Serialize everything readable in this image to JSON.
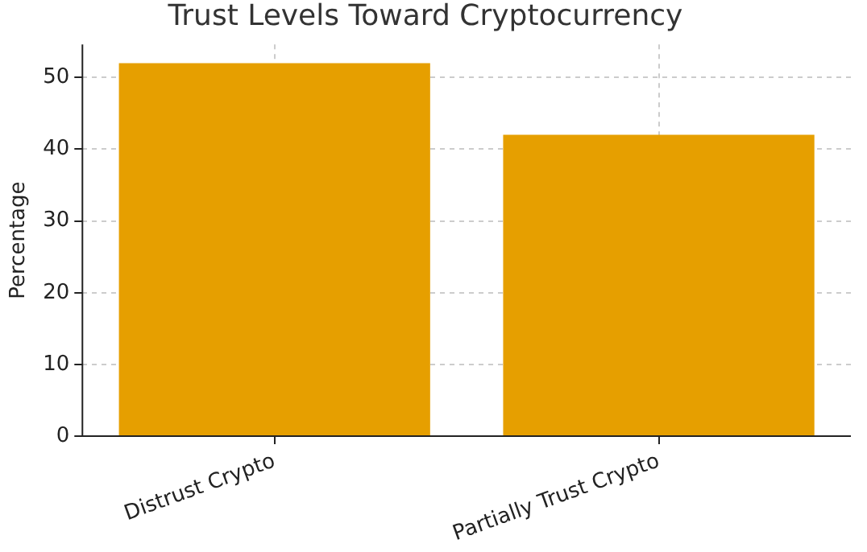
{
  "chart_data": {
    "type": "bar",
    "title": "Trust Levels Toward Cryptocurrency",
    "ylabel": "Percentage",
    "categories": [
      "Distrust Crypto",
      "Partially Trust Crypto"
    ],
    "values": [
      52,
      42
    ],
    "color": "#e69f00",
    "ylim": [
      0,
      54.6
    ],
    "yticks": [
      0,
      10,
      20,
      30,
      40,
      50
    ],
    "grid": true
  }
}
